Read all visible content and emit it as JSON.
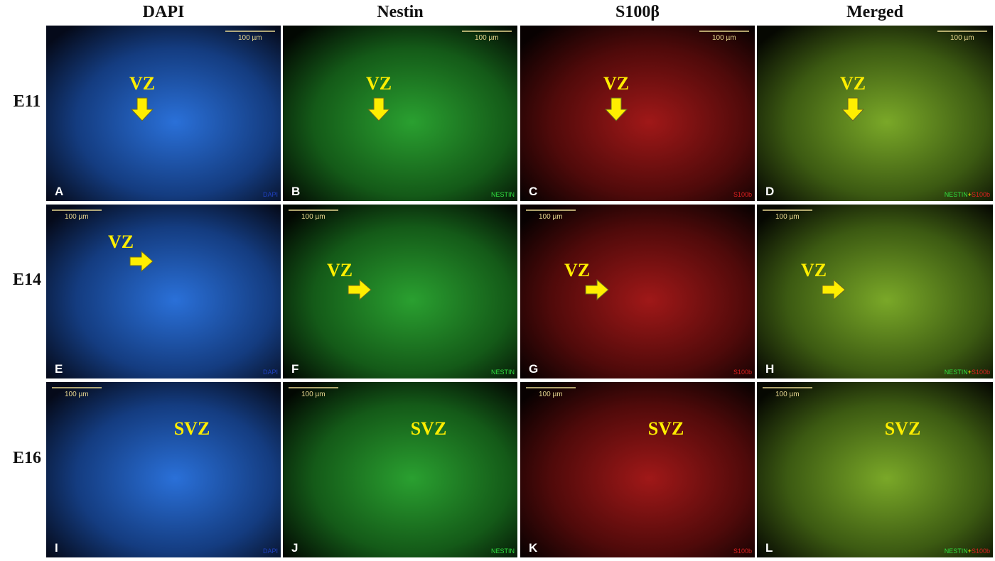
{
  "header": {
    "columns": [
      "DAPI",
      "Nestin",
      "S100β",
      "Merged"
    ]
  },
  "rows": [
    {
      "label": "E11",
      "panels": [
        {
          "letter": "A",
          "scale": "100 µm",
          "zone": "VZ",
          "channel": [
            "DAPI"
          ]
        },
        {
          "letter": "B",
          "scale": "100 µm",
          "zone": "VZ",
          "channel": [
            "NESTIN"
          ]
        },
        {
          "letter": "C",
          "scale": "100 µm",
          "zone": "VZ",
          "channel": [
            "S100b"
          ]
        },
        {
          "letter": "D",
          "scale": "100 µm",
          "zone": "VZ",
          "channel": [
            "NESTIN",
            "+",
            "S100b"
          ]
        }
      ]
    },
    {
      "label": "E14",
      "panels": [
        {
          "letter": "E",
          "scale": "100 µm",
          "zone": "VZ",
          "channel": [
            "DAPI"
          ]
        },
        {
          "letter": "F",
          "scale": "100 µm",
          "zone": "VZ",
          "channel": [
            "NESTIN"
          ]
        },
        {
          "letter": "G",
          "scale": "100 µm",
          "zone": "VZ",
          "channel": [
            "S100b"
          ]
        },
        {
          "letter": "H",
          "scale": "100 µm",
          "zone": "VZ",
          "channel": [
            "NESTIN",
            "+",
            "S100b"
          ]
        }
      ]
    },
    {
      "label": "E16",
      "panels": [
        {
          "letter": "I",
          "scale": "100 µm",
          "zone": "SVZ",
          "channel": [
            "DAPI"
          ]
        },
        {
          "letter": "J",
          "scale": "100 µm",
          "zone": "SVZ",
          "channel": [
            "NESTIN"
          ]
        },
        {
          "letter": "K",
          "scale": "100 µm",
          "zone": "SVZ",
          "channel": [
            "S100b"
          ]
        },
        {
          "letter": "L",
          "scale": "100 µm",
          "zone": "SVZ",
          "channel": [
            "NESTIN",
            "+",
            "S100b"
          ]
        }
      ]
    }
  ]
}
